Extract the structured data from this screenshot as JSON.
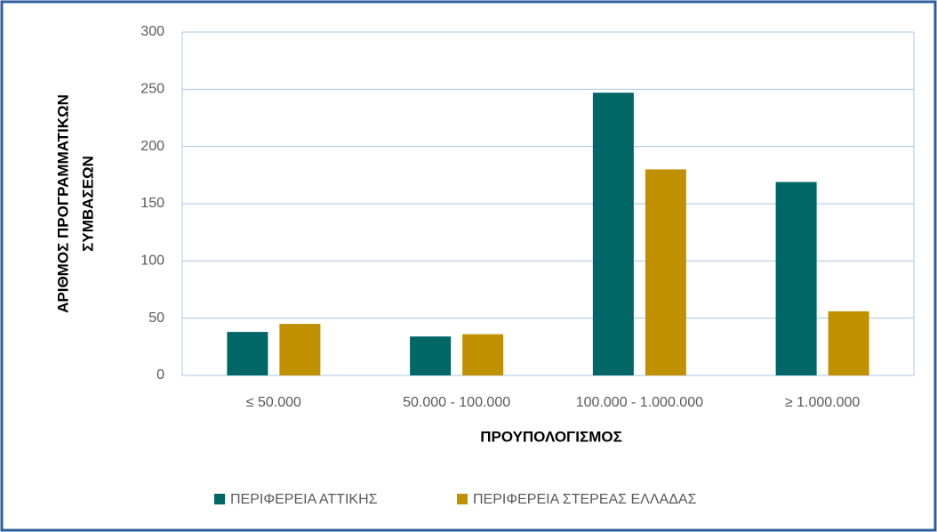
{
  "chart_data": {
    "type": "bar",
    "categories": [
      "≤ 50.000",
      "50.000 - 100.000",
      "100.000 - 1.000.000",
      "≥ 1.000.000"
    ],
    "series": [
      {
        "name": "ΠΕΡΙΦΕΡΕΙΑ ΑΤΤΙΚΗΣ",
        "color": "#006666",
        "values": [
          38,
          34,
          247,
          169
        ]
      },
      {
        "name": "ΠΕΡΙΦΕΡΕΙΑ ΣΤΕΡΕΑΣ ΕΛΛΑΔΑΣ",
        "color": "#c09000",
        "values": [
          45,
          36,
          180,
          56
        ]
      }
    ],
    "xlabel": "ΠΡΟΥΠΟΛΟΓΙΣΜΟΣ",
    "ylabel": [
      "ΑΡΙΘΜΟΣ ΠΡΟΓΡΑΜΜΑΤΙΚΩΝ",
      "ΣΥΜΒΑΣΕΩΝ"
    ],
    "ylim": [
      0,
      300
    ],
    "yticks": [
      0,
      50,
      100,
      150,
      200,
      250,
      300
    ],
    "grid": true,
    "legend": "bottom"
  }
}
